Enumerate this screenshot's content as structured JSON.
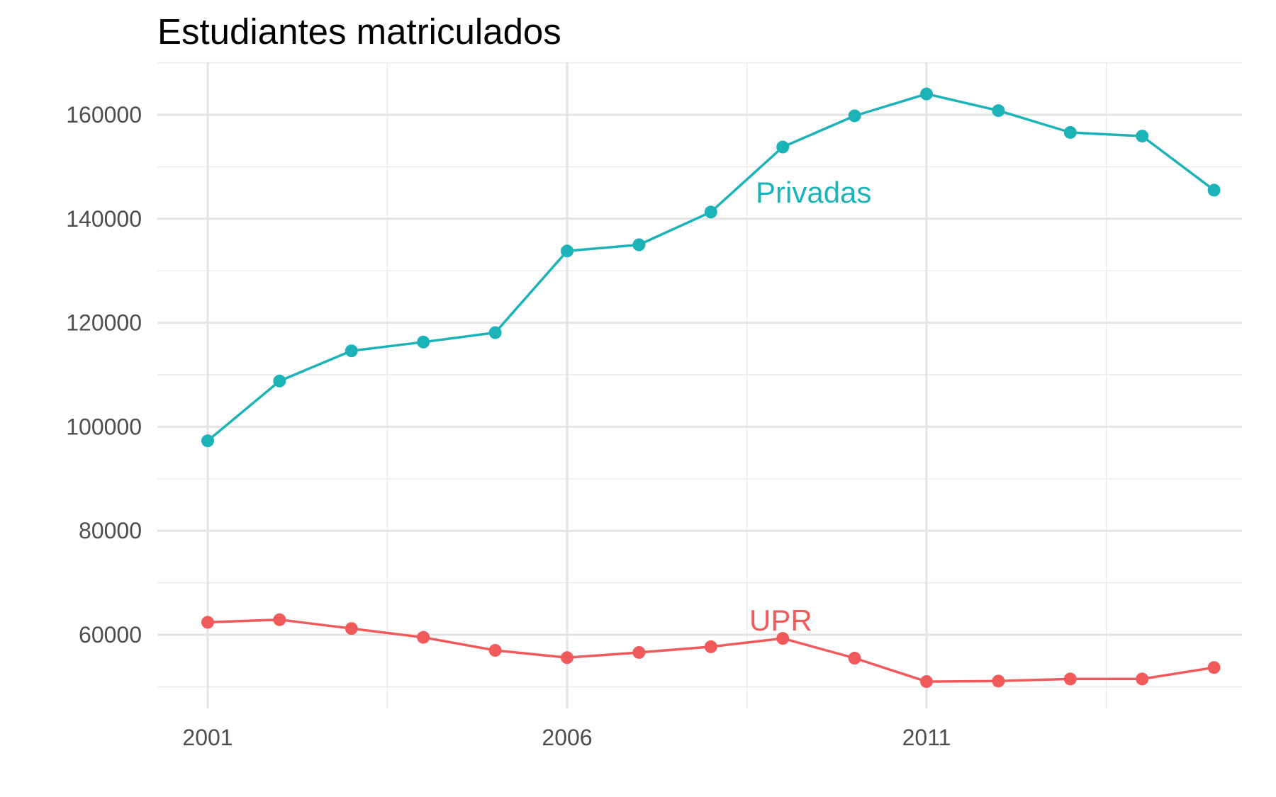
{
  "chart_data": {
    "type": "line",
    "title": "Estudiantes matriculados",
    "xlabel": "",
    "ylabel": "",
    "x": [
      2001,
      2002,
      2003,
      2004,
      2005,
      2006,
      2007,
      2008,
      2009,
      2010,
      2011,
      2012,
      2013,
      2014,
      2015
    ],
    "x_ticks": [
      2001,
      2006,
      2011
    ],
    "x_tick_labels": [
      "2001",
      "2006",
      "2011"
    ],
    "y_ticks": [
      60000,
      80000,
      100000,
      120000,
      140000,
      160000
    ],
    "y_tick_labels": [
      "60000",
      "80000",
      "100000",
      "120000",
      "140000",
      "160000"
    ],
    "xlim": [
      2000.3,
      2015.4
    ],
    "ylim": [
      46000,
      170000
    ],
    "grid": true,
    "legend": "none",
    "series": [
      {
        "name": "Privadas",
        "color": "#1bb2b8",
        "values": [
          97300,
          108800,
          114600,
          116300,
          118100,
          133800,
          135000,
          141300,
          153800,
          159800,
          164000,
          160800,
          156600,
          155900,
          145500
        ]
      },
      {
        "name": "UPR",
        "color": "#f05a5a",
        "values": [
          62400,
          62900,
          61200,
          59500,
          57000,
          55600,
          56600,
          57700,
          59300,
          55500,
          51000,
          51100,
          51500,
          51500,
          53700
        ]
      }
    ]
  }
}
